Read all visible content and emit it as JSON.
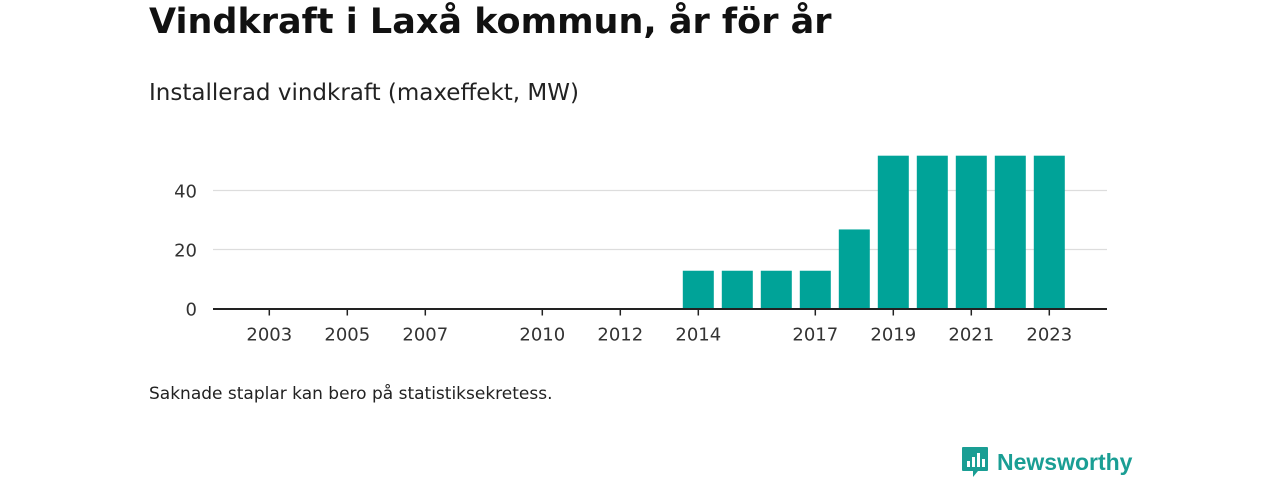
{
  "title": "Vindkraft i Laxå kommun, år för år",
  "subtitle": "Installerad vindkraft (maxeffekt, MW)",
  "note": "Saknade staplar kan bero på statistiksekretess.",
  "brand": {
    "name": "Newsworthy",
    "color": "#1a9e94",
    "icon": "newsworthy-logo-icon"
  },
  "colors": {
    "bar": "#00a398",
    "grid": "#dddddd",
    "axis": "#222222"
  },
  "chart_data": {
    "type": "bar",
    "categories": [
      "2002",
      "2003",
      "2004",
      "2005",
      "2006",
      "2007",
      "2008",
      "2009",
      "2010",
      "2011",
      "2012",
      "2013",
      "2014",
      "2015",
      "2016",
      "2017",
      "2018",
      "2019",
      "2020",
      "2021",
      "2022",
      "2023"
    ],
    "x_tick_labels": [
      "2003",
      "2005",
      "2007",
      "2010",
      "2012",
      "2014",
      "2017",
      "2019",
      "2021",
      "2023"
    ],
    "values": [
      null,
      null,
      null,
      null,
      null,
      null,
      null,
      null,
      null,
      null,
      null,
      null,
      12.8,
      12.8,
      12.8,
      12.8,
      26.8,
      51.8,
      51.8,
      51.8,
      51.8,
      51.8
    ],
    "y_ticks": [
      0,
      20,
      40
    ],
    "ylim": [
      0,
      55
    ],
    "grid": true,
    "xlabel": "",
    "ylabel": ""
  }
}
